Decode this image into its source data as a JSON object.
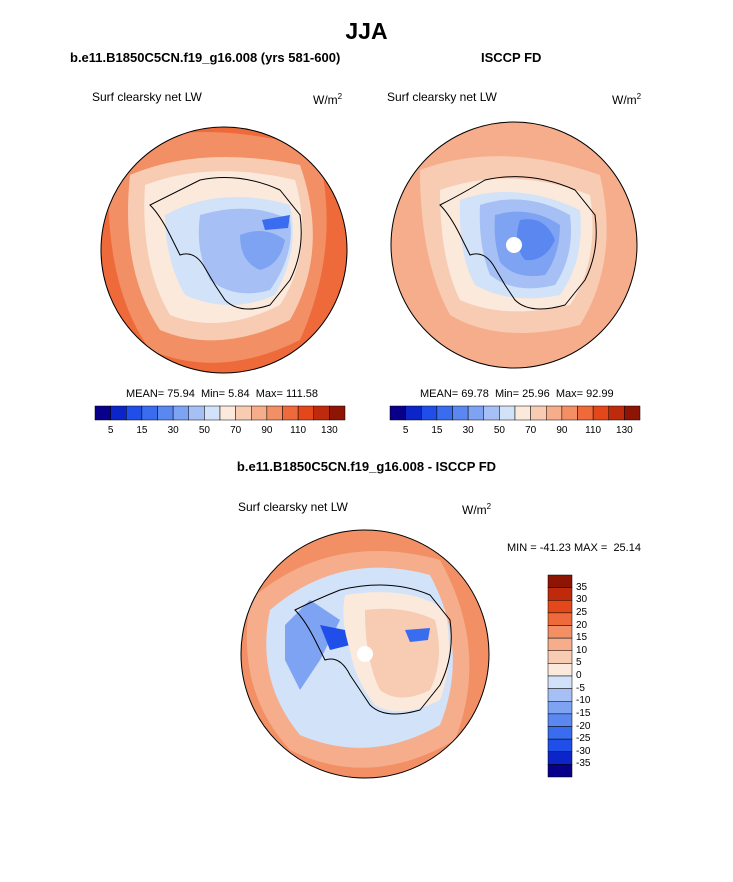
{
  "page": {
    "title": "JJA"
  },
  "panels": {
    "model": {
      "title": "b.e11.B1850C5CN.f19_g16.008 (yrs 581-600)",
      "label": "Surf clearsky net LW",
      "units": "W/m",
      "units_sup": "2",
      "stats": {
        "mean_label": "MEAN=",
        "mean": "75.94",
        "min_label": "Min=",
        "min": "5.84",
        "max_label": "Max=",
        "max": "111.58"
      }
    },
    "obs": {
      "title": "ISCCP FD",
      "label": "Surf clearsky net LW",
      "units": "W/m",
      "units_sup": "2",
      "stats": {
        "mean_label": "MEAN=",
        "mean": "69.78",
        "min_label": "Min=",
        "min": "25.96",
        "max_label": "Max=",
        "max": "92.99"
      }
    },
    "diff": {
      "title": "b.e11.B1850C5CN.f19_g16.008 - ISCCP FD",
      "label": "Surf clearsky net LW",
      "units": "W/m",
      "units_sup": "2",
      "minmax": {
        "min_label": "MIN =",
        "min": "-41.23",
        "max_label": "MAX =",
        "max": "25.14"
      }
    }
  },
  "chart_data": [
    {
      "type": "heatmap",
      "projection": "south polar stereographic",
      "title": "b.e11.B1850C5CN.f19_g16.008 (yrs 581-600)",
      "variable": "Surf clearsky net LW",
      "units": "W/m2",
      "mean": 75.94,
      "min": 5.84,
      "max": 111.58,
      "colorbar": {
        "orientation": "horizontal",
        "levels": [
          5,
          10,
          15,
          20,
          30,
          40,
          50,
          60,
          70,
          80,
          90,
          100,
          110,
          120,
          130
        ],
        "tick_labels": [
          "5",
          "15",
          "30",
          "50",
          "70",
          "90",
          "110",
          "130"
        ]
      }
    },
    {
      "type": "heatmap",
      "projection": "south polar stereographic",
      "title": "ISCCP FD",
      "variable": "Surf clearsky net LW",
      "units": "W/m2",
      "mean": 69.78,
      "min": 25.96,
      "max": 92.99,
      "colorbar": {
        "orientation": "horizontal",
        "levels": [
          5,
          10,
          15,
          20,
          30,
          40,
          50,
          60,
          70,
          80,
          90,
          100,
          110,
          120,
          130
        ],
        "tick_labels": [
          "5",
          "15",
          "30",
          "50",
          "70",
          "90",
          "110",
          "130"
        ]
      }
    },
    {
      "type": "heatmap",
      "projection": "south polar stereographic",
      "title": "b.e11.B1850C5CN.f19_g16.008 - ISCCP FD",
      "variable": "Surf clearsky net LW",
      "units": "W/m2",
      "min": -41.23,
      "max": 25.14,
      "colorbar": {
        "orientation": "vertical",
        "levels": [
          35,
          30,
          25,
          20,
          15,
          10,
          5,
          0,
          -5,
          -10,
          -15,
          -20,
          -25,
          -30,
          -35
        ],
        "tick_labels": [
          "35",
          "30",
          "25",
          "20",
          "15",
          "10",
          "5",
          "0",
          "-5",
          "-10",
          "-15",
          "-20",
          "-25",
          "-30",
          "-35"
        ]
      }
    }
  ],
  "colors": {
    "scale": [
      "#08008a",
      "#0b25c8",
      "#1f4ee8",
      "#3a6cf0",
      "#5a88f0",
      "#7ea3f2",
      "#a6c0f5",
      "#d2e2f8",
      "#fbe9dc",
      "#f8cbb3",
      "#f5ad8b",
      "#f28f65",
      "#ee6a3a",
      "#e4471a",
      "#bf2a0c",
      "#8e1404"
    ],
    "coast": "#000000"
  }
}
